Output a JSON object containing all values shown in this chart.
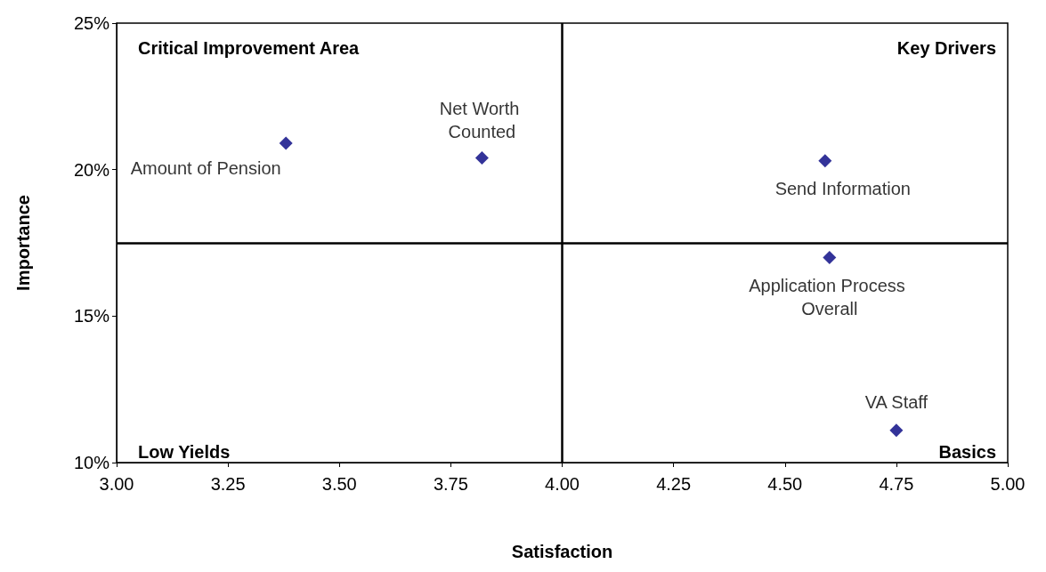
{
  "chart_data": {
    "type": "scatter",
    "xlabel": "Satisfaction",
    "ylabel": "Importance",
    "xlim": [
      3,
      5
    ],
    "xticks": [
      {
        "value": 3,
        "label": "3.00"
      },
      {
        "value": 3.25,
        "label": "3.25"
      },
      {
        "value": 3.5,
        "label": "3.50"
      },
      {
        "value": 3.75,
        "label": "3.75"
      },
      {
        "value": 4,
        "label": "4.00"
      },
      {
        "value": 4.25,
        "label": "4.25"
      },
      {
        "value": 4.5,
        "label": "4.50"
      },
      {
        "value": 4.75,
        "label": "4.75"
      },
      {
        "value": 5,
        "label": "5.00"
      }
    ],
    "ylim": [
      10,
      25
    ],
    "yticks": [
      {
        "value": 10,
        "label": "10%"
      },
      {
        "value": 15,
        "label": "15%"
      },
      {
        "value": 20,
        "label": "20%"
      },
      {
        "value": 25,
        "label": "25%"
      }
    ],
    "grid": false,
    "legend": false,
    "marker": "diamond",
    "series": [
      {
        "name": "Amount of Pension",
        "color": "#000080",
        "x": [
          3.38
        ],
        "values": [
          20.9
        ]
      },
      {
        "name": "Net Worth Counted",
        "color": "#000080",
        "x": [
          3.82
        ],
        "values": [
          20.4
        ]
      },
      {
        "name": "Send Information",
        "color": "#000080",
        "x": [
          4.59
        ],
        "values": [
          20.3
        ]
      },
      {
        "name": "Application Process Overall",
        "color": "#000080",
        "x": [
          4.6
        ],
        "values": [
          17.0
        ]
      },
      {
        "name": "VA Staff",
        "color": "#000080",
        "x": [
          4.75
        ],
        "values": [
          11.1
        ]
      }
    ],
    "ref_lines": [
      {
        "axis": "x",
        "value": 4,
        "color": "#000000"
      },
      {
        "axis": "y",
        "value": 17.5,
        "color": "#000000"
      }
    ],
    "annotations": [
      "Critical Improvement Area",
      "Key Drivers",
      "Low Yields",
      "Basics"
    ]
  }
}
